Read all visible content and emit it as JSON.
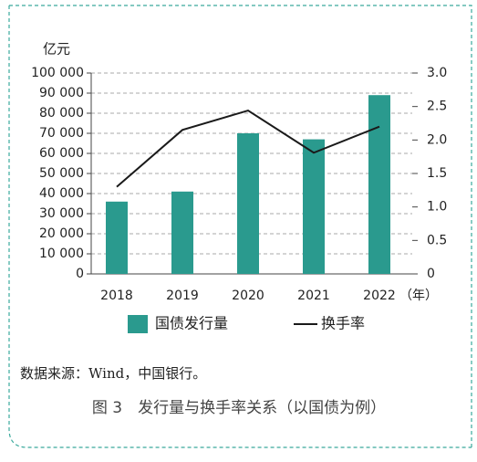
{
  "chart_data": {
    "type": "bar",
    "y_unit": "亿元",
    "x_unit": "（年）",
    "categories": [
      "2018",
      "2019",
      "2020",
      "2021",
      "2022"
    ],
    "series": [
      {
        "name": "国债发行量",
        "color": "#2a9a8e",
        "type": "bar",
        "values": [
          36000,
          41000,
          70000,
          67000,
          89000
        ]
      },
      {
        "name": "换手率",
        "color": "#1a1a1a",
        "type": "line",
        "axis": "y2",
        "values": [
          1.3,
          2.15,
          2.44,
          1.81,
          2.2
        ]
      }
    ],
    "ylim": [
      0,
      100000
    ],
    "yticks": [
      0,
      {
        "value": 10000,
        "label": "10 000"
      },
      {
        "value": 20000,
        "label": "20 000"
      },
      {
        "value": 30000,
        "label": "30 000"
      },
      {
        "value": 40000,
        "label": "40 000"
      },
      {
        "value": 50000,
        "label": "50 000"
      },
      {
        "value": 60000,
        "label": "60 000"
      },
      {
        "value": 70000,
        "label": "70 000"
      },
      {
        "value": 80000,
        "label": "80 000"
      },
      {
        "value": 90000,
        "label": "90 000"
      },
      {
        "value": 100000,
        "label": "100 000"
      }
    ],
    "y2lim": [
      0,
      3
    ],
    "y2ticks": [
      0,
      0.5,
      {
        "value": 1,
        "label": "1.0"
      },
      1.5,
      {
        "value": 2,
        "label": "2.0"
      },
      2.5,
      {
        "value": 3,
        "label": "3.0"
      }
    ],
    "grid": true,
    "source": "数据来源：Wind，中国银行。",
    "caption": "图 3　发行量与换手率关系（以国债为例）"
  }
}
